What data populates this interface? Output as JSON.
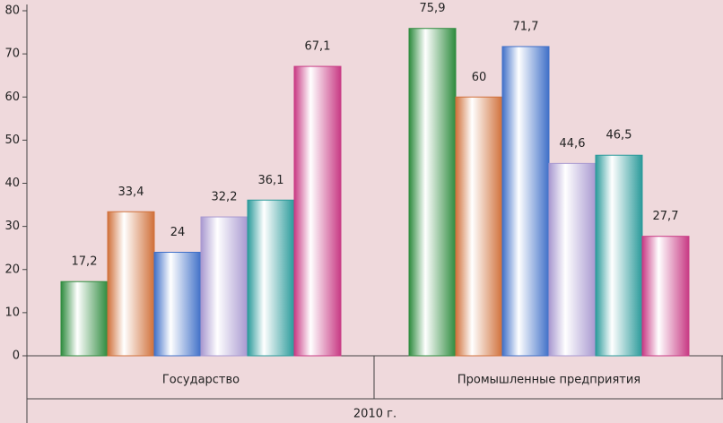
{
  "chart_data": {
    "type": "bar",
    "categories": [
      "Государство",
      "Промышленные предприятия"
    ],
    "xlabel": "2010 г.",
    "ylim": [
      0,
      80
    ],
    "yticks": [
      0,
      10,
      20,
      30,
      40,
      50,
      60,
      70,
      80
    ],
    "series": [
      {
        "color": "#2e8b3e",
        "values": [
          17.2,
          75.9
        ],
        "value_labels": [
          "17,2",
          "75,9"
        ]
      },
      {
        "color": "#d0703a",
        "values": [
          33.4,
          60
        ],
        "value_labels": [
          "33,4",
          "60"
        ]
      },
      {
        "color": "#4070c8",
        "values": [
          24,
          71.7
        ],
        "value_labels": [
          "24",
          "71,7"
        ]
      },
      {
        "color": "#a898d0",
        "values": [
          32.2,
          44.6
        ],
        "value_labels": [
          "32,2",
          "44,6"
        ]
      },
      {
        "color": "#2a9a9a",
        "values": [
          36.1,
          46.5
        ],
        "value_labels": [
          "36,1",
          "46,5"
        ]
      },
      {
        "color": "#c83a84",
        "values": [
          67.1,
          27.7
        ],
        "value_labels": [
          "67,1",
          "27,7"
        ]
      }
    ]
  }
}
